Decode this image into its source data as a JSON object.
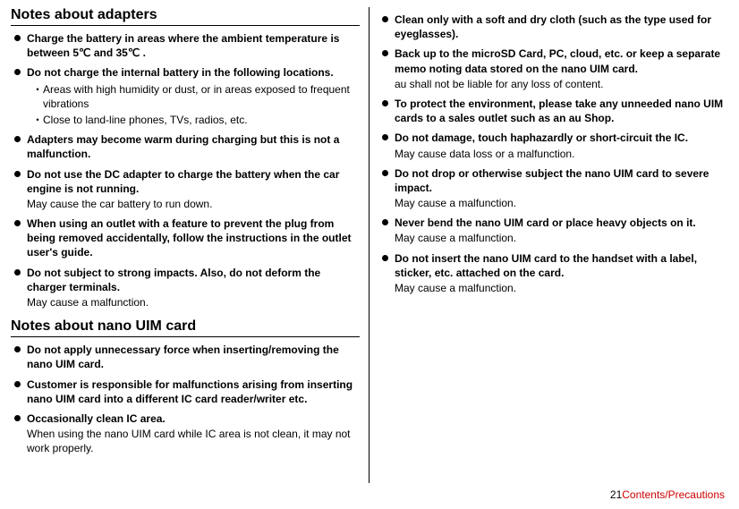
{
  "left": {
    "heading1": "Notes about adapters",
    "items1": [
      {
        "bold": "Charge the battery in areas where the ambient temperature is between 5℃ and 35℃ ."
      },
      {
        "bold": "Do not charge the internal battery in the following locations.",
        "dots": [
          "Areas with high humidity or dust, or in areas exposed to frequent vibrations",
          "Close to land-line phones, TVs, radios, etc."
        ]
      },
      {
        "bold": "Adapters may become warm during charging but this is not a malfunction."
      },
      {
        "bold": "Do not use the DC adapter to charge the battery when the car engine is not running.",
        "sub": "May cause the car battery to run down."
      },
      {
        "bold": "When using an outlet with a feature to prevent the plug from being removed accidentally, follow the instructions in the outlet user's guide."
      },
      {
        "bold": "Do not subject to strong impacts. Also, do not deform the charger terminals.",
        "sub": "May cause a malfunction."
      }
    ],
    "heading2": "Notes about nano UIM card",
    "items2": [
      {
        "bold": "Do not apply unnecessary force when inserting/removing the nano UIM card."
      },
      {
        "bold": "Customer is responsible for malfunctions arising from inserting nano UIM card into a different IC card reader/writer etc."
      },
      {
        "bold": "Occasionally clean IC area.",
        "sub": "When using the nano UIM card while IC area is not clean, it may not work properly."
      }
    ]
  },
  "right": {
    "items": [
      {
        "bold": "Clean only with a soft and dry cloth (such as the type used for eyeglasses)."
      },
      {
        "bold": "Back up to the microSD Card, PC, cloud, etc. or keep a separate memo noting data stored on the nano UIM card.",
        "sub": "au shall not be liable for any loss of content."
      },
      {
        "bold": "To protect the environment, please take any unneeded nano UIM cards to a sales outlet such as an au Shop."
      },
      {
        "bold": "Do not damage, touch haphazardly or short-circuit the IC.",
        "sub": "May cause data loss or a malfunction."
      },
      {
        "bold": "Do not drop or otherwise subject the nano UIM card to severe impact.",
        "sub": "May cause a malfunction."
      },
      {
        "bold": "Never bend the nano UIM card or place heavy objects on it.",
        "sub": "May cause a malfunction."
      },
      {
        "bold": "Do not insert the nano UIM card to the handset with a label, sticker, etc. attached on the card.",
        "sub": "May cause a malfunction."
      }
    ]
  },
  "footer": {
    "page": "21",
    "section": "Contents/Precautions"
  }
}
